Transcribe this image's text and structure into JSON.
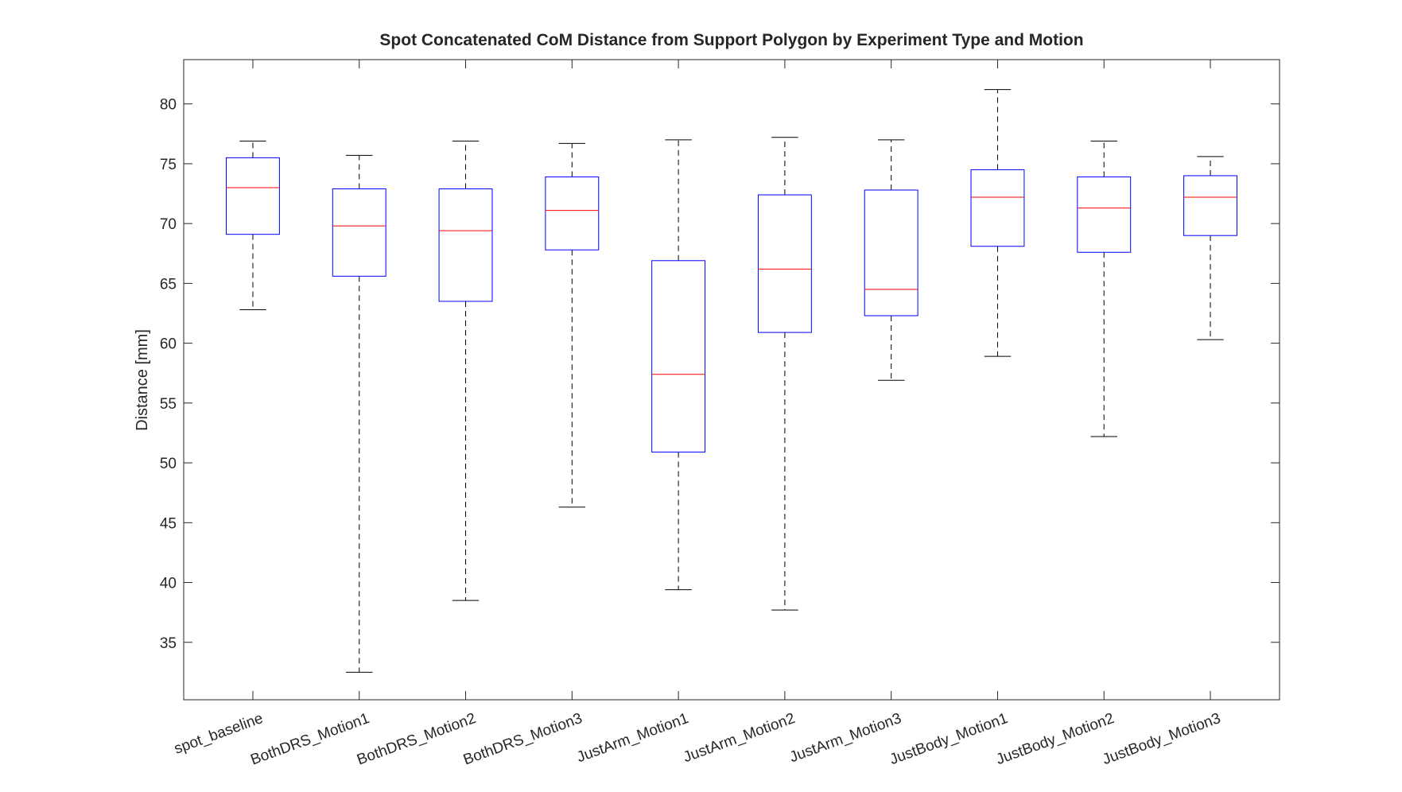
{
  "chart_data": {
    "type": "box",
    "title": "Spot Concatenated CoM Distance from Support Polygon by Experiment Type and Motion",
    "xlabel": "",
    "ylabel": "Distance [mm]",
    "ylim": [
      30.2,
      83.7
    ],
    "yticks": [
      35,
      40,
      45,
      50,
      55,
      60,
      65,
      70,
      75,
      80
    ],
    "grid": false,
    "categories": [
      "spot_baseline",
      "BothDRS_Motion1",
      "BothDRS_Motion2",
      "BothDRS_Motion3",
      "JustArm_Motion1",
      "JustArm_Motion2",
      "JustArm_Motion3",
      "JustBody_Motion1",
      "JustBody_Motion2",
      "JustBody_Motion3"
    ],
    "boxes": [
      {
        "whisker_low": 62.8,
        "q1": 69.1,
        "median": 73.0,
        "q3": 75.5,
        "whisker_high": 76.9
      },
      {
        "whisker_low": 32.5,
        "q1": 65.6,
        "median": 69.8,
        "q3": 72.9,
        "whisker_high": 75.7
      },
      {
        "whisker_low": 38.5,
        "q1": 63.5,
        "median": 69.4,
        "q3": 72.9,
        "whisker_high": 76.9
      },
      {
        "whisker_low": 46.3,
        "q1": 67.8,
        "median": 71.1,
        "q3": 73.9,
        "whisker_high": 76.7
      },
      {
        "whisker_low": 39.4,
        "q1": 50.9,
        "median": 57.4,
        "q3": 66.9,
        "whisker_high": 77.0
      },
      {
        "whisker_low": 37.7,
        "q1": 60.9,
        "median": 66.2,
        "q3": 72.4,
        "whisker_high": 77.2
      },
      {
        "whisker_low": 56.9,
        "q1": 62.3,
        "median": 64.5,
        "q3": 72.8,
        "whisker_high": 77.0
      },
      {
        "whisker_low": 58.9,
        "q1": 68.1,
        "median": 72.2,
        "q3": 74.5,
        "whisker_high": 81.2
      },
      {
        "whisker_low": 52.2,
        "q1": 67.6,
        "median": 71.3,
        "q3": 73.9,
        "whisker_high": 76.9
      },
      {
        "whisker_low": 60.3,
        "q1": 69.0,
        "median": 72.2,
        "q3": 74.0,
        "whisker_high": 75.6
      }
    ],
    "colors": {
      "box": "#0000ff",
      "median": "#ff0000",
      "whisker": "#000000",
      "axes": "#262626"
    }
  }
}
